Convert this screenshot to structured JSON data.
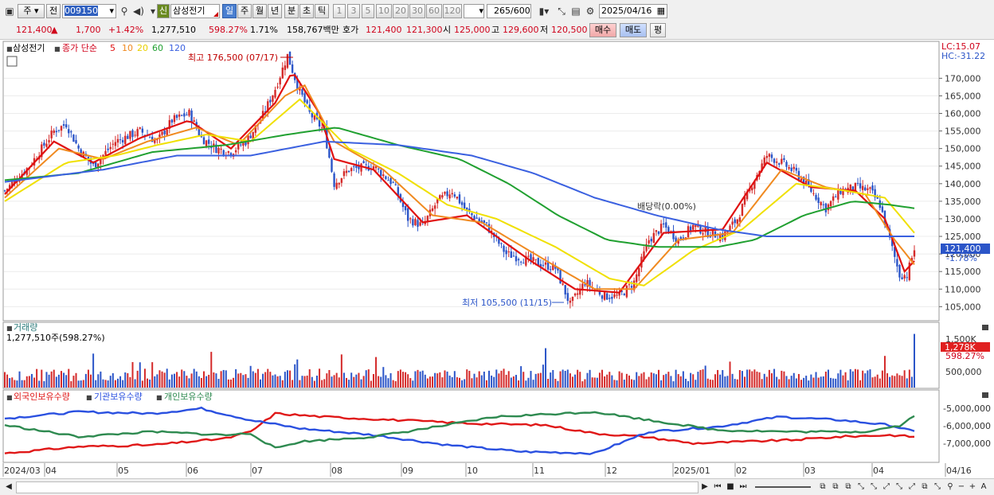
{
  "toolbar": {
    "type_main": "주",
    "type_prev": "전",
    "code": "009150",
    "credit_tag": "신",
    "stock_name": "삼성전기",
    "periods": [
      "일",
      "주",
      "월",
      "년",
      "분",
      "초",
      "틱"
    ],
    "active_period": "일",
    "intervals": [
      "1",
      "3",
      "5",
      "10",
      "20",
      "30",
      "60",
      "120"
    ],
    "count_value": "265",
    "count_max": "/600",
    "date": "2025/04/16"
  },
  "info": {
    "price": "121,400",
    "change": "1,700",
    "change_pct": "+1.42%",
    "volume": "1,277,510",
    "volume_ratio": "598.27%",
    "turnover": "1.71%",
    "amount": "158,767백만",
    "quote_label": "호가",
    "ask": "121,400",
    "bid": "121,300",
    "open_label": "시",
    "open": "125,000",
    "high_label": "고",
    "high": "129,600",
    "low_label": "저",
    "low": "120,500",
    "buy_label": "매수",
    "sell_label": "매도",
    "eval_label": "평"
  },
  "legend": {
    "name": "삼성전기",
    "ma_label": "종가 단순",
    "ma_periods": [
      "5",
      "10",
      "20",
      "60",
      "120"
    ],
    "lc": "LC:15.07",
    "hc": "HC:-31.22"
  },
  "colors": {
    "up": "#d42a2a",
    "down": "#2b55c8",
    "ma5": "#e01010",
    "ma10": "#f08a20",
    "ma20": "#f0e000",
    "ma60": "#20a030",
    "ma120": "#3a60e0",
    "foreign": "#e01818",
    "institution": "#2a50e0",
    "individual": "#2e8a50"
  },
  "annotations": {
    "max": "최고 176,500 (07/17)",
    "min": "최저 105,500 (11/15)",
    "dividend": "배당락(0.00%)",
    "current_tag": "121,400",
    "current_pct": "-1.78%",
    "vol_tag": "1,278K",
    "vol_pct": "598.27%"
  },
  "volume_panel": {
    "title": "거래량",
    "value": "1,277,510주(598.27%)",
    "ticks": [
      "1,500K",
      "500,000"
    ]
  },
  "holdings_panel": {
    "labels": [
      "외국인보유수량",
      "기관보유수량",
      "개인보유수량"
    ],
    "ticks": [
      "-5,000,000",
      "-6,000,000",
      "-7,000,000"
    ]
  },
  "chart_data": {
    "type": "line",
    "title": "",
    "price_axis": {
      "ylim": [
        101000,
        180500
      ],
      "ticks": [
        105000,
        110000,
        115000,
        120000,
        125000,
        130000,
        135000,
        140000,
        145000,
        150000,
        155000,
        160000,
        165000,
        170000
      ]
    },
    "x_labels": [
      "2024/03",
      "04",
      "05",
      "06",
      "07",
      "08",
      "09",
      "10",
      "11",
      "12",
      "2025/01",
      "02",
      "03",
      "04",
      "04/16"
    ],
    "close_series": [
      {
        "x": 0,
        "y": 138000
      },
      {
        "x": 10,
        "y": 145000
      },
      {
        "x": 20,
        "y": 155000
      },
      {
        "x": 25,
        "y": 157000
      },
      {
        "x": 30,
        "y": 150000
      },
      {
        "x": 36,
        "y": 145000
      },
      {
        "x": 45,
        "y": 152000
      },
      {
        "x": 55,
        "y": 155000
      },
      {
        "x": 62,
        "y": 152000
      },
      {
        "x": 68,
        "y": 158000
      },
      {
        "x": 75,
        "y": 160000
      },
      {
        "x": 80,
        "y": 153000
      },
      {
        "x": 86,
        "y": 150000
      },
      {
        "x": 92,
        "y": 149000
      },
      {
        "x": 98,
        "y": 152000
      },
      {
        "x": 104,
        "y": 158000
      },
      {
        "x": 110,
        "y": 167000
      },
      {
        "x": 115,
        "y": 176500
      },
      {
        "x": 119,
        "y": 168000
      },
      {
        "x": 124,
        "y": 160000
      },
      {
        "x": 130,
        "y": 155000
      },
      {
        "x": 134,
        "y": 140000
      },
      {
        "x": 140,
        "y": 144000
      },
      {
        "x": 150,
        "y": 145000
      },
      {
        "x": 158,
        "y": 140000
      },
      {
        "x": 164,
        "y": 130000
      },
      {
        "x": 170,
        "y": 128000
      },
      {
        "x": 176,
        "y": 135000
      },
      {
        "x": 182,
        "y": 138000
      },
      {
        "x": 188,
        "y": 132000
      },
      {
        "x": 196,
        "y": 128000
      },
      {
        "x": 204,
        "y": 120000
      },
      {
        "x": 214,
        "y": 118000
      },
      {
        "x": 224,
        "y": 116000
      },
      {
        "x": 230,
        "y": 105500
      },
      {
        "x": 236,
        "y": 112000
      },
      {
        "x": 244,
        "y": 108000
      },
      {
        "x": 250,
        "y": 108000
      },
      {
        "x": 256,
        "y": 112000
      },
      {
        "x": 262,
        "y": 124000
      },
      {
        "x": 268,
        "y": 128000
      },
      {
        "x": 274,
        "y": 124000
      },
      {
        "x": 280,
        "y": 128000
      },
      {
        "x": 286,
        "y": 126000
      },
      {
        "x": 292,
        "y": 125000
      },
      {
        "x": 298,
        "y": 130000
      },
      {
        "x": 304,
        "y": 140000
      },
      {
        "x": 310,
        "y": 148000
      },
      {
        "x": 316,
        "y": 146000
      },
      {
        "x": 322,
        "y": 143000
      },
      {
        "x": 328,
        "y": 138000
      },
      {
        "x": 334,
        "y": 133000
      },
      {
        "x": 340,
        "y": 138000
      },
      {
        "x": 346,
        "y": 139000
      },
      {
        "x": 352,
        "y": 138000
      },
      {
        "x": 356,
        "y": 134000
      },
      {
        "x": 360,
        "y": 124000
      },
      {
        "x": 364,
        "y": 114000
      },
      {
        "x": 367,
        "y": 114000
      },
      {
        "x": 370,
        "y": 121400
      }
    ],
    "ma_series": [
      {
        "name": "5",
        "color": "#e01010",
        "points": [
          [
            0,
            137000
          ],
          [
            20,
            152000
          ],
          [
            36,
            146000
          ],
          [
            55,
            153000
          ],
          [
            75,
            158000
          ],
          [
            92,
            150000
          ],
          [
            110,
            163000
          ],
          [
            117,
            172000
          ],
          [
            128,
            160000
          ],
          [
            134,
            147000
          ],
          [
            150,
            144000
          ],
          [
            170,
            129000
          ],
          [
            188,
            131000
          ],
          [
            214,
            118000
          ],
          [
            232,
            110000
          ],
          [
            250,
            109000
          ],
          [
            268,
            126000
          ],
          [
            292,
            127000
          ],
          [
            310,
            146000
          ],
          [
            328,
            139000
          ],
          [
            346,
            138000
          ],
          [
            358,
            130000
          ],
          [
            366,
            115000
          ],
          [
            370,
            118000
          ]
        ]
      },
      {
        "name": "10",
        "color": "#f08a20",
        "points": [
          [
            0,
            136000
          ],
          [
            22,
            150000
          ],
          [
            40,
            147000
          ],
          [
            58,
            152000
          ],
          [
            78,
            156000
          ],
          [
            95,
            151000
          ],
          [
            114,
            165000
          ],
          [
            122,
            168000
          ],
          [
            134,
            152000
          ],
          [
            154,
            144000
          ],
          [
            174,
            131000
          ],
          [
            194,
            129000
          ],
          [
            218,
            119000
          ],
          [
            240,
            110000
          ],
          [
            256,
            110000
          ],
          [
            274,
            124000
          ],
          [
            296,
            126000
          ],
          [
            316,
            144000
          ],
          [
            334,
            139000
          ],
          [
            350,
            137000
          ],
          [
            362,
            124000
          ],
          [
            370,
            117000
          ]
        ]
      },
      {
        "name": "20",
        "color": "#f0e000",
        "points": [
          [
            0,
            135000
          ],
          [
            25,
            146000
          ],
          [
            45,
            148000
          ],
          [
            62,
            151000
          ],
          [
            82,
            154000
          ],
          [
            100,
            152000
          ],
          [
            120,
            164000
          ],
          [
            140,
            150000
          ],
          [
            160,
            143000
          ],
          [
            180,
            134000
          ],
          [
            200,
            130000
          ],
          [
            224,
            122000
          ],
          [
            246,
            113000
          ],
          [
            260,
            111000
          ],
          [
            280,
            121000
          ],
          [
            300,
            127000
          ],
          [
            322,
            140000
          ],
          [
            342,
            138000
          ],
          [
            358,
            136000
          ],
          [
            370,
            126000
          ]
        ]
      },
      {
        "name": "60",
        "color": "#20a030",
        "points": [
          [
            0,
            141000
          ],
          [
            30,
            143000
          ],
          [
            60,
            149000
          ],
          [
            90,
            151000
          ],
          [
            115,
            154000
          ],
          [
            135,
            156000
          ],
          [
            160,
            151000
          ],
          [
            185,
            147000
          ],
          [
            205,
            140000
          ],
          [
            225,
            131000
          ],
          [
            245,
            124000
          ],
          [
            265,
            122000
          ],
          [
            290,
            122000
          ],
          [
            305,
            124000
          ],
          [
            325,
            131000
          ],
          [
            345,
            135000
          ],
          [
            360,
            134000
          ],
          [
            370,
            133000
          ]
        ]
      },
      {
        "name": "120",
        "color": "#3a60e0",
        "points": [
          [
            0,
            140500
          ],
          [
            40,
            144000
          ],
          [
            70,
            148000
          ],
          [
            100,
            148000
          ],
          [
            130,
            152000
          ],
          [
            160,
            151000
          ],
          [
            190,
            148000
          ],
          [
            215,
            143000
          ],
          [
            240,
            136000
          ],
          [
            265,
            131000
          ],
          [
            290,
            127000
          ],
          [
            310,
            125000
          ],
          [
            340,
            125000
          ],
          [
            370,
            125000
          ]
        ]
      }
    ],
    "volume_series": {
      "ylim": [
        0,
        1800000
      ],
      "last": 1277510
    },
    "holdings_series": [
      {
        "name": "외국인보유수량",
        "color": "#e01818",
        "points": [
          [
            0,
            -7500000
          ],
          [
            30,
            -7100000
          ],
          [
            60,
            -7000000
          ],
          [
            90,
            -6600000
          ],
          [
            100,
            -6200000
          ],
          [
            110,
            -5100000
          ],
          [
            130,
            -5300000
          ],
          [
            160,
            -5500000
          ],
          [
            190,
            -5700000
          ],
          [
            220,
            -5800000
          ],
          [
            240,
            -6300000
          ],
          [
            260,
            -6500000
          ],
          [
            280,
            -6900000
          ],
          [
            300,
            -6800000
          ],
          [
            320,
            -6700000
          ],
          [
            340,
            -6500000
          ],
          [
            360,
            -6400000
          ],
          [
            370,
            -6500000
          ]
        ]
      },
      {
        "name": "기관보유수량",
        "color": "#2a50e0",
        "points": [
          [
            0,
            -5400000
          ],
          [
            30,
            -5000000
          ],
          [
            60,
            -5100000
          ],
          [
            80,
            -4800000
          ],
          [
            100,
            -5500000
          ],
          [
            120,
            -6000000
          ],
          [
            150,
            -6400000
          ],
          [
            180,
            -7000000
          ],
          [
            210,
            -7400000
          ],
          [
            240,
            -7500000
          ],
          [
            262,
            -6200000
          ],
          [
            290,
            -5900000
          ],
          [
            315,
            -5300000
          ],
          [
            340,
            -5500000
          ],
          [
            360,
            -5800000
          ],
          [
            370,
            -6200000
          ]
        ]
      },
      {
        "name": "개인보유수량",
        "color": "#2e8a50",
        "points": [
          [
            0,
            -5800000
          ],
          [
            30,
            -6500000
          ],
          [
            60,
            -6200000
          ],
          [
            90,
            -6400000
          ],
          [
            100,
            -6300000
          ],
          [
            110,
            -7200000
          ],
          [
            120,
            -6800000
          ],
          [
            150,
            -6500000
          ],
          [
            180,
            -5800000
          ],
          [
            200,
            -5300000
          ],
          [
            240,
            -5000000
          ],
          [
            262,
            -5500000
          ],
          [
            290,
            -6100000
          ],
          [
            320,
            -6200000
          ],
          [
            350,
            -6200000
          ],
          [
            365,
            -5800000
          ],
          [
            370,
            -5200000
          ]
        ]
      }
    ]
  }
}
